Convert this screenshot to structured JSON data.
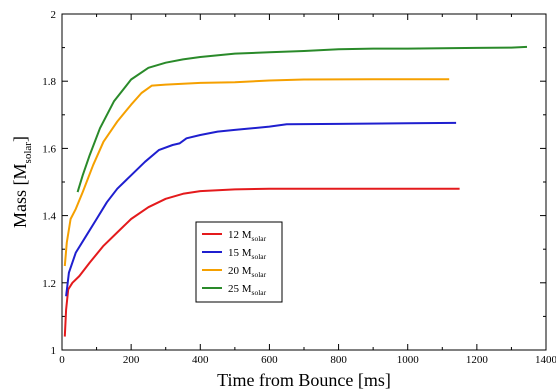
{
  "chart_data": {
    "type": "line",
    "title": "",
    "xlabel": "Time from Bounce [ms]",
    "ylabel": {
      "main": "Mass [M",
      "sub": "solar",
      "close": "]"
    },
    "xlim": [
      0,
      1400
    ],
    "ylim": [
      1,
      2
    ],
    "xticks": [
      0,
      200,
      400,
      600,
      800,
      1000,
      1200,
      1400
    ],
    "yticks": [
      1,
      1.2,
      1.4,
      1.6,
      1.8,
      2
    ],
    "ytick_labels": [
      "1",
      "1.2",
      "1.4",
      "1.6",
      "1.8",
      "2"
    ],
    "legend_position": "center-left",
    "series": [
      {
        "name": "12 M",
        "name_sub": "solar",
        "color": "#e41a1c",
        "points": [
          [
            8,
            1.04
          ],
          [
            12,
            1.12
          ],
          [
            18,
            1.18
          ],
          [
            30,
            1.2
          ],
          [
            50,
            1.22
          ],
          [
            80,
            1.26
          ],
          [
            120,
            1.31
          ],
          [
            160,
            1.35
          ],
          [
            200,
            1.39
          ],
          [
            250,
            1.425
          ],
          [
            300,
            1.45
          ],
          [
            350,
            1.465
          ],
          [
            400,
            1.473
          ],
          [
            500,
            1.478
          ],
          [
            600,
            1.48
          ],
          [
            800,
            1.48
          ],
          [
            1000,
            1.48
          ],
          [
            1150,
            1.48
          ]
        ]
      },
      {
        "name": "15 M",
        "name_sub": "solar",
        "color": "#1f1fcf",
        "points": [
          [
            12,
            1.16
          ],
          [
            20,
            1.23
          ],
          [
            40,
            1.29
          ],
          [
            70,
            1.34
          ],
          [
            100,
            1.39
          ],
          [
            130,
            1.44
          ],
          [
            160,
            1.48
          ],
          [
            200,
            1.52
          ],
          [
            240,
            1.56
          ],
          [
            280,
            1.595
          ],
          [
            320,
            1.61
          ],
          [
            340,
            1.615
          ],
          [
            360,
            1.63
          ],
          [
            400,
            1.64
          ],
          [
            450,
            1.65
          ],
          [
            500,
            1.655
          ],
          [
            600,
            1.665
          ],
          [
            650,
            1.672
          ],
          [
            800,
            1.673
          ],
          [
            1000,
            1.675
          ],
          [
            1140,
            1.676
          ]
        ]
      },
      {
        "name": "20 M",
        "name_sub": "solar",
        "color": "#f5a000",
        "points": [
          [
            8,
            1.25
          ],
          [
            14,
            1.32
          ],
          [
            25,
            1.39
          ],
          [
            40,
            1.42
          ],
          [
            60,
            1.47
          ],
          [
            90,
            1.55
          ],
          [
            120,
            1.62
          ],
          [
            160,
            1.68
          ],
          [
            200,
            1.73
          ],
          [
            230,
            1.765
          ],
          [
            260,
            1.787
          ],
          [
            300,
            1.79
          ],
          [
            400,
            1.795
          ],
          [
            500,
            1.797
          ],
          [
            600,
            1.802
          ],
          [
            700,
            1.805
          ],
          [
            900,
            1.806
          ],
          [
            1120,
            1.806
          ]
        ]
      },
      {
        "name": "25 M",
        "name_sub": "solar",
        "color": "#2a8a2a",
        "points": [
          [
            45,
            1.47
          ],
          [
            60,
            1.52
          ],
          [
            80,
            1.58
          ],
          [
            110,
            1.66
          ],
          [
            150,
            1.74
          ],
          [
            200,
            1.805
          ],
          [
            250,
            1.84
          ],
          [
            300,
            1.855
          ],
          [
            350,
            1.865
          ],
          [
            400,
            1.872
          ],
          [
            500,
            1.882
          ],
          [
            600,
            1.886
          ],
          [
            700,
            1.89
          ],
          [
            800,
            1.895
          ],
          [
            900,
            1.897
          ],
          [
            1000,
            1.897
          ],
          [
            1100,
            1.898
          ],
          [
            1200,
            1.899
          ],
          [
            1300,
            1.9
          ],
          [
            1345,
            1.902
          ]
        ]
      }
    ]
  }
}
